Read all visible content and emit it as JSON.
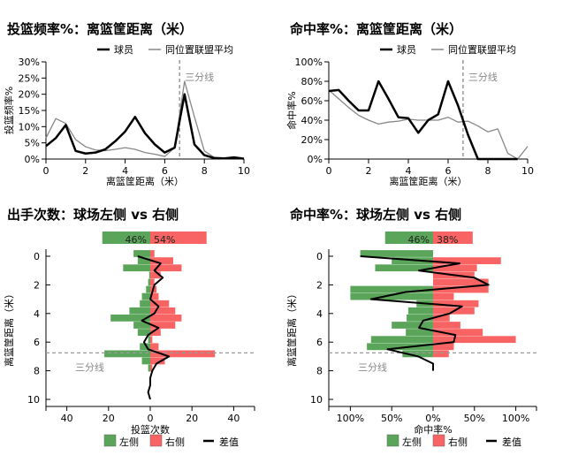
{
  "colors": {
    "player": "#000000",
    "league": "#888888",
    "left": "#5aa55a",
    "right": "#f86464",
    "three_line": "#999999"
  },
  "chart_data": [
    {
      "type": "line",
      "title": "投篮频率%：离篮筐距离（米）",
      "xlabel": "离篮筐距离（米）",
      "ylabel": "投篮频率%",
      "xlim": [
        0,
        10
      ],
      "ylim": [
        0,
        30
      ],
      "xticks": [
        "0",
        "2",
        "4",
        "6",
        "8",
        "10"
      ],
      "yticks": [
        "0%",
        "5%",
        "10%",
        "15%",
        "20%",
        "25%",
        "30%"
      ],
      "three_point_line": 6.75,
      "three_point_label": "三分线",
      "legend_position": "top-right",
      "x": [
        0,
        0.5,
        1,
        1.5,
        2,
        2.5,
        3,
        3.5,
        4,
        4.5,
        5,
        5.5,
        6,
        6.5,
        7,
        7.5,
        8,
        8.5,
        9,
        9.5,
        10
      ],
      "series": [
        {
          "name": "球员",
          "values": [
            4,
            6.5,
            10.5,
            2.5,
            1.7,
            2,
            3,
            5.5,
            8.5,
            13,
            8,
            4.5,
            2,
            3.5,
            20,
            4.5,
            1.2,
            0.3,
            0.2,
            0.5,
            0.1
          ]
        },
        {
          "name": "同位置联盟平均",
          "values": [
            6.5,
            12.5,
            11,
            6,
            3.8,
            2.8,
            2.6,
            3,
            3.5,
            3,
            2,
            1.5,
            0.8,
            3.5,
            24,
            13,
            2.5,
            0.5,
            0.3,
            0.3,
            0.2
          ]
        }
      ]
    },
    {
      "type": "line",
      "title": "命中率%：离篮筐距离（米）",
      "xlabel": "离篮筐距离（米）",
      "ylabel": "命中率%",
      "xlim": [
        0,
        10
      ],
      "ylim": [
        0,
        100
      ],
      "xticks": [
        "0",
        "2",
        "4",
        "6",
        "8",
        "10"
      ],
      "yticks": [
        "0%",
        "20%",
        "40%",
        "60%",
        "80%",
        "100%"
      ],
      "three_point_line": 6.75,
      "three_point_label": "三分线",
      "legend_position": "top-right",
      "x": [
        0,
        0.5,
        1,
        1.5,
        2,
        2.5,
        3,
        3.5,
        4,
        4.5,
        5,
        5.5,
        6,
        6.5,
        7,
        7.5,
        8,
        8.5,
        9,
        9.5,
        10
      ],
      "series": [
        {
          "name": "球员",
          "values": [
            70,
            71,
            60,
            50,
            50,
            80,
            62,
            43,
            42,
            27,
            40,
            46,
            80,
            55,
            25,
            0,
            0,
            0,
            0,
            0,
            null
          ]
        },
        {
          "name": "同位置联盟平均",
          "values": [
            71,
            62,
            53,
            45,
            40,
            36,
            38,
            39,
            41,
            40,
            40,
            40,
            43,
            38,
            39,
            34,
            28,
            31,
            6,
            0,
            13
          ]
        }
      ]
    },
    {
      "type": "bar",
      "orientation": "horizontal-diverging",
      "title": "出手次数：球场左侧 vs 右侧",
      "xlabel": "投篮次数",
      "ylabel": "离篮筐距离（米）",
      "xlim": [
        -50,
        50
      ],
      "ylim": [
        0,
        10
      ],
      "xticks": [
        "40",
        "20",
        "0",
        "20",
        "40"
      ],
      "yticks": [
        "0",
        "2",
        "4",
        "6",
        "8",
        "10"
      ],
      "three_point_line": 6.75,
      "three_point_label": "三分线",
      "legend_position": "bottom",
      "summary": {
        "left": "46%",
        "right": "54%",
        "left_value": 46,
        "right_value": 54
      },
      "y": [
        0,
        0.5,
        1,
        1.5,
        2,
        2.5,
        3,
        3.5,
        4,
        4.5,
        5,
        5.5,
        6,
        6.5,
        7,
        7.5,
        8
      ],
      "series": [
        {
          "name": "左侧",
          "values": [
            8,
            6,
            13,
            0.5,
            1,
            2,
            4,
            5,
            10,
            19,
            8,
            6,
            1,
            5,
            22,
            4,
            1
          ]
        },
        {
          "name": "右侧",
          "values": [
            2,
            11,
            15,
            5,
            2,
            3,
            4,
            9,
            12,
            15,
            12,
            5,
            1,
            4,
            31,
            7,
            1
          ]
        }
      ],
      "diff": {
        "name": "差值",
        "y": [
          0,
          0.5,
          1,
          1.5,
          2,
          2.5,
          3,
          3.5,
          4,
          4.5,
          5,
          5.5,
          6,
          6.5,
          7,
          7.5,
          8,
          8.5,
          9,
          9.5,
          10
        ],
        "values": [
          -6,
          5,
          2,
          6,
          2,
          1,
          0,
          4,
          2,
          -4,
          4,
          -1,
          -3,
          -1,
          9,
          3,
          1,
          0,
          0,
          -1,
          0
        ]
      }
    },
    {
      "type": "bar",
      "orientation": "horizontal-diverging",
      "title": "命中率%：球场左侧 vs 右侧",
      "xlabel": "命中率%",
      "ylabel": "离篮筐距离（米）",
      "xlim": [
        -125,
        125
      ],
      "ylim": [
        0,
        10
      ],
      "xticks": [
        "100%",
        "50%",
        "0%",
        "50%",
        "100%"
      ],
      "yticks": [
        "0",
        "2",
        "4",
        "6",
        "8",
        "10"
      ],
      "three_point_line": 6.75,
      "three_point_label": "三分线",
      "legend_position": "bottom",
      "summary": {
        "left": "46%",
        "right": "38%",
        "left_value": 46,
        "right_value": 38
      },
      "y": [
        0,
        0.5,
        1,
        1.5,
        2,
        2.5,
        3,
        3.5,
        4,
        4.5,
        5,
        5.5,
        6,
        6.5,
        7
      ],
      "series": [
        {
          "name": "左侧",
          "values": [
            88,
            50,
            70,
            0,
            0,
            100,
            100,
            20,
            30,
            32,
            50,
            33,
            75,
            80,
            37
          ]
        },
        {
          "name": "右侧",
          "values": [
            0,
            82,
            53,
            50,
            67,
            67,
            25,
            55,
            50,
            20,
            33,
            60,
            100,
            25,
            19
          ]
        }
      ],
      "diff": {
        "name": "差值",
        "y": [
          0,
          0.5,
          1,
          1.5,
          2,
          2.5,
          3,
          3.5,
          4,
          4.5,
          5,
          5.5,
          6,
          6.5,
          7,
          7.5,
          8
        ],
        "values": [
          -88,
          32,
          -17,
          50,
          67,
          -33,
          -75,
          35,
          20,
          -12,
          -17,
          27,
          25,
          -55,
          -18,
          0,
          0
        ]
      }
    }
  ]
}
